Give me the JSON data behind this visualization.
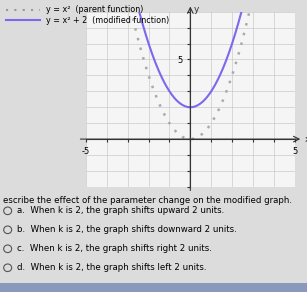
{
  "legend_parent_label": "y = x²  (parent function)",
  "legend_modified_label": "y = x² + 2  (modified function)",
  "parent_color": "#aaaaaa",
  "modified_color": "#7B68EE",
  "parent_linestyle": "dotted",
  "modified_linestyle": "solid",
  "xlim": [
    -5,
    5
  ],
  "ylim": [
    -3,
    8
  ],
  "xlabel": "x",
  "ylabel": "y",
  "question_text": "escribe the effect of the parameter change on the modified graph.",
  "options": [
    "a.  When k is 2, the graph shifts upward 2 units.",
    "b.  When k is 2, the graph shifts downward 2 units.",
    "c.  When k is 2, the graph shifts right 2 units.",
    "d.  When k is 2, the graph shifts left 2 units."
  ],
  "bg_color": "#dcdcdc",
  "graph_bg_color": "#f5f5f5",
  "legend_dotted_color": "#999999",
  "legend_solid_color": "#7B68EE"
}
